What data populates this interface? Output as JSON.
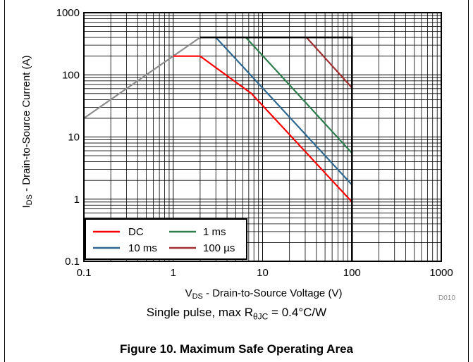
{
  "chart_data": {
    "type": "line",
    "x_scale": "log",
    "y_scale": "log",
    "xlim": [
      0.1,
      1000
    ],
    "ylim": [
      0.1,
      1000
    ],
    "grid": true,
    "legend_position": "bottom-left",
    "x_tick_labels": [
      "0.1",
      "1",
      "10",
      "100",
      "1000"
    ],
    "y_tick_labels": [
      "0.1",
      "1",
      "10",
      "100",
      "1000"
    ],
    "xlabel_main": "V",
    "xlabel_sub": "DS",
    "xlabel_rest": " - Drain-to-Source Voltage (V)",
    "ylabel_main": "I",
    "ylabel_sub": "DS",
    "ylabel_rest": " - Drain-to-Source Current (A)",
    "legend": [
      {
        "name": "DC",
        "color": "#ff0000"
      },
      {
        "name": "1 ms",
        "color": "#2e7d4f"
      },
      {
        "name": "10 ms",
        "color": "#2f6890"
      },
      {
        "name": "100 µs",
        "color": "#a03030"
      }
    ],
    "series": [
      {
        "name": "RDS(on) limit",
        "color": "#8c8c8c",
        "x": [
          0.1,
          2
        ],
        "y": [
          20,
          400
        ]
      },
      {
        "name": "DC",
        "color": "#ff0000",
        "x": [
          1,
          2,
          7.5,
          100
        ],
        "y": [
          200,
          200,
          50,
          0.9
        ]
      },
      {
        "name": "10 ms",
        "color": "#2f6890",
        "x": [
          3,
          100
        ],
        "y": [
          400,
          1.7
        ]
      },
      {
        "name": "1 ms",
        "color": "#2e7d4f",
        "x": [
          6.5,
          100
        ],
        "y": [
          400,
          5.5
        ]
      },
      {
        "name": "100 µs",
        "color": "#a03030",
        "x": [
          31,
          100
        ],
        "y": [
          400,
          62
        ]
      },
      {
        "name": "Boundary",
        "color": "#000000",
        "x": [
          2,
          100,
          100
        ],
        "y": [
          400,
          400,
          0.1
        ]
      }
    ]
  },
  "footer": {
    "code": "D010",
    "note_pre": "Single pulse, max R",
    "note_sub": "θJC",
    "note_post": " = 0.4°C/W",
    "caption": "Figure 10. Maximum Safe Operating Area"
  }
}
